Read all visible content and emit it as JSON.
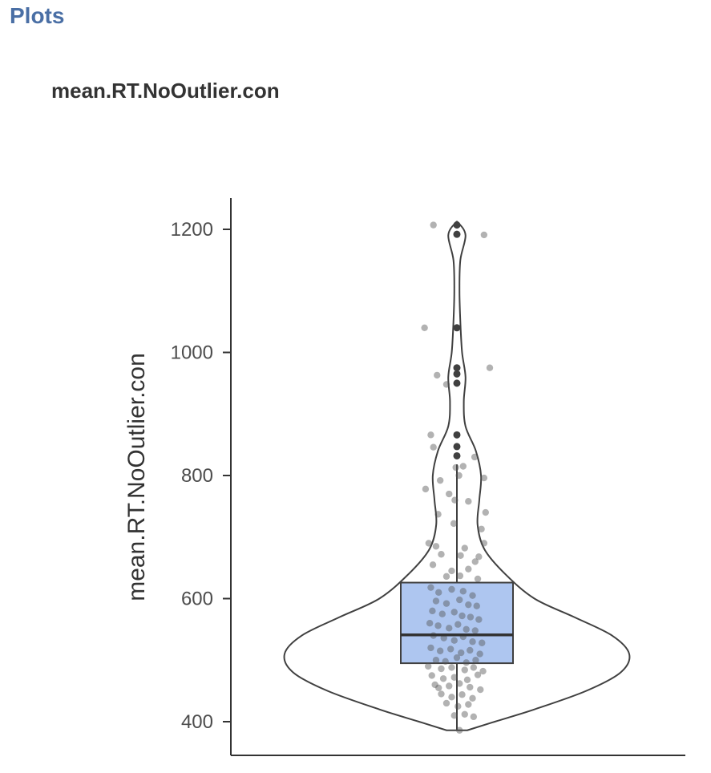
{
  "header": {
    "section_title": "Plots",
    "plot_title": "mean.RT.NoOutlier.con"
  },
  "chart_data": {
    "type": "violin",
    "ylabel": "mean.RT.NoOutlier.con",
    "xlabel": "",
    "ylim": [
      350,
      1250
    ],
    "yticks": [
      400,
      600,
      800,
      1000,
      1200
    ],
    "grid": false,
    "legend": "none",
    "colors": {
      "box_fill": "#aec6f0",
      "outline": "#404040",
      "points": "#555555"
    },
    "box": {
      "q1": 495,
      "median": 541,
      "q3": 626,
      "whisker_low": 386,
      "whisker_high": 818
    },
    "outliers": [
      1207,
      1192,
      1040,
      975,
      965,
      950,
      866,
      847,
      832
    ],
    "violin_profile": [
      [
        386,
        0.06
      ],
      [
        400,
        0.22
      ],
      [
        420,
        0.45
      ],
      [
        450,
        0.75
      ],
      [
        480,
        0.95
      ],
      [
        510,
        1.0
      ],
      [
        540,
        0.9
      ],
      [
        570,
        0.68
      ],
      [
        600,
        0.45
      ],
      [
        640,
        0.28
      ],
      [
        680,
        0.16
      ],
      [
        720,
        0.12
      ],
      [
        760,
        0.13
      ],
      [
        800,
        0.14
      ],
      [
        840,
        0.11
      ],
      [
        880,
        0.05
      ],
      [
        920,
        0.04
      ],
      [
        960,
        0.05
      ],
      [
        1000,
        0.03
      ],
      [
        1050,
        0.02
      ],
      [
        1100,
        0.015
      ],
      [
        1150,
        0.02
      ],
      [
        1190,
        0.05
      ],
      [
        1210,
        0.01
      ]
    ],
    "points": [
      [
        -0.45,
        1207
      ],
      [
        0.52,
        1191
      ],
      [
        -0.62,
        1040
      ],
      [
        0.63,
        975
      ],
      [
        -0.38,
        963
      ],
      [
        -0.2,
        948
      ],
      [
        -0.5,
        866
      ],
      [
        -0.45,
        846
      ],
      [
        0.34,
        830
      ],
      [
        -0.02,
        813
      ],
      [
        0.12,
        815
      ],
      [
        -0.6,
        778
      ],
      [
        -0.32,
        792
      ],
      [
        0.52,
        796
      ],
      [
        0.04,
        800
      ],
      [
        -0.15,
        770
      ],
      [
        -0.04,
        760
      ],
      [
        0.22,
        758
      ],
      [
        -0.36,
        737
      ],
      [
        0.55,
        740
      ],
      [
        -0.06,
        722
      ],
      [
        0.47,
        713
      ],
      [
        -0.54,
        690
      ],
      [
        0.52,
        690
      ],
      [
        -0.4,
        685
      ],
      [
        0.15,
        682
      ],
      [
        -0.3,
        672
      ],
      [
        0.07,
        670
      ],
      [
        0.42,
        668
      ],
      [
        -0.46,
        655
      ],
      [
        0.35,
        660
      ],
      [
        0.22,
        648
      ],
      [
        -0.1,
        645
      ],
      [
        0.4,
        632
      ],
      [
        -0.2,
        636
      ],
      [
        0.06,
        637
      ],
      [
        -0.5,
        618
      ],
      [
        -0.35,
        610
      ],
      [
        -0.1,
        615
      ],
      [
        0.12,
        612
      ],
      [
        0.3,
        605
      ],
      [
        -0.4,
        596
      ],
      [
        -0.2,
        592
      ],
      [
        0.05,
        598
      ],
      [
        0.22,
        590
      ],
      [
        0.38,
        588
      ],
      [
        -0.47,
        580
      ],
      [
        -0.28,
        575
      ],
      [
        -0.05,
        578
      ],
      [
        0.1,
        572
      ],
      [
        0.26,
        570
      ],
      [
        0.42,
        566
      ],
      [
        -0.52,
        560
      ],
      [
        -0.36,
        556
      ],
      [
        -0.15,
        552
      ],
      [
        0.02,
        558
      ],
      [
        0.18,
        550
      ],
      [
        0.35,
        548
      ],
      [
        -0.45,
        540
      ],
      [
        -0.25,
        536
      ],
      [
        -0.05,
        532
      ],
      [
        0.12,
        538
      ],
      [
        0.3,
        530
      ],
      [
        0.48,
        528
      ],
      [
        -0.5,
        520
      ],
      [
        -0.32,
        515
      ],
      [
        -0.12,
        518
      ],
      [
        0.08,
        512
      ],
      [
        0.25,
        516
      ],
      [
        0.44,
        510
      ],
      [
        -0.4,
        500
      ],
      [
        -0.22,
        498
      ],
      [
        0.0,
        504
      ],
      [
        0.18,
        496
      ],
      [
        0.36,
        500
      ],
      [
        -0.55,
        490
      ],
      [
        -0.3,
        486
      ],
      [
        -0.1,
        488
      ],
      [
        0.15,
        484
      ],
      [
        0.32,
        488
      ],
      [
        0.5,
        482
      ],
      [
        -0.48,
        475
      ],
      [
        -0.26,
        470
      ],
      [
        -0.05,
        472
      ],
      [
        0.2,
        468
      ],
      [
        0.4,
        476
      ],
      [
        -0.42,
        460
      ],
      [
        -0.35,
        455
      ],
      [
        -0.15,
        458
      ],
      [
        0.05,
        462
      ],
      [
        0.25,
        456
      ],
      [
        0.45,
        452
      ],
      [
        -0.3,
        445
      ],
      [
        -0.1,
        440
      ],
      [
        0.1,
        444
      ],
      [
        0.3,
        438
      ],
      [
        -0.2,
        430
      ],
      [
        0.02,
        425
      ],
      [
        0.22,
        428
      ],
      [
        -0.05,
        410
      ],
      [
        0.15,
        412
      ],
      [
        0.32,
        408
      ],
      [
        0.05,
        386
      ]
    ]
  }
}
